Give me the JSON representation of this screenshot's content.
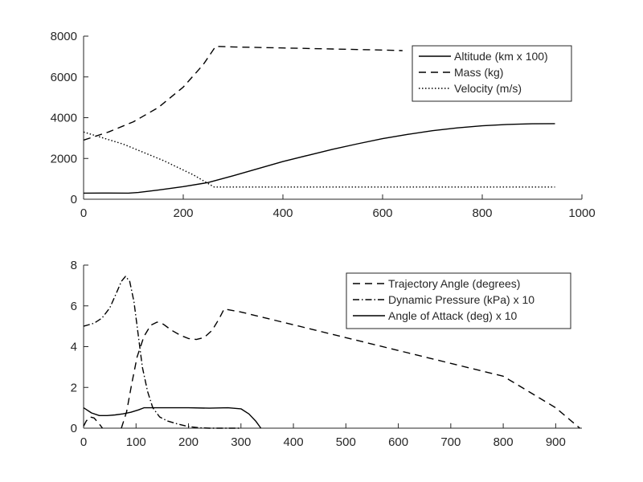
{
  "chart_data": [
    {
      "type": "line",
      "xlim": [
        0,
        1000
      ],
      "ylim": [
        0,
        8000
      ],
      "xticks": [
        0,
        200,
        400,
        600,
        800,
        1000
      ],
      "yticks": [
        0,
        2000,
        4000,
        6000,
        8000
      ],
      "grid": false,
      "legend_position": "top-right",
      "series": [
        {
          "name": "Altitude (km x 100)",
          "style": "solid",
          "points": [
            [
              0,
              300
            ],
            [
              50,
              305
            ],
            [
              90,
              300
            ],
            [
              110,
              330
            ],
            [
              150,
              450
            ],
            [
              200,
              620
            ],
            [
              250,
              820
            ],
            [
              262,
              900
            ],
            [
              300,
              1150
            ],
            [
              350,
              1500
            ],
            [
              400,
              1850
            ],
            [
              450,
              2150
            ],
            [
              500,
              2450
            ],
            [
              550,
              2720
            ],
            [
              600,
              2970
            ],
            [
              650,
              3180
            ],
            [
              700,
              3360
            ],
            [
              750,
              3500
            ],
            [
              800,
              3600
            ],
            [
              850,
              3670
            ],
            [
              900,
              3700
            ],
            [
              946,
              3710
            ]
          ]
        },
        {
          "name": "Mass (kg)",
          "style": "dashed",
          "points": [
            [
              0,
              2900
            ],
            [
              50,
              3300
            ],
            [
              100,
              3800
            ],
            [
              150,
              4500
            ],
            [
              200,
              5500
            ],
            [
              240,
              6600
            ],
            [
              265,
              7500
            ],
            [
              300,
              7470
            ],
            [
              400,
              7420
            ],
            [
              500,
              7370
            ],
            [
              600,
              7320
            ],
            [
              640,
              7290
            ]
          ]
        },
        {
          "name": "Velocity (m/s)",
          "style": "dotted",
          "points": [
            [
              0,
              3300
            ],
            [
              80,
              2700
            ],
            [
              160,
              1900
            ],
            [
              220,
              1200
            ],
            [
              262,
              600
            ],
            [
              400,
              600
            ],
            [
              600,
              600
            ],
            [
              800,
              600
            ],
            [
              946,
              600
            ]
          ]
        }
      ]
    },
    {
      "type": "line",
      "xlim": [
        0,
        950
      ],
      "ylim": [
        0,
        8
      ],
      "xticks": [
        0,
        100,
        200,
        300,
        400,
        500,
        600,
        700,
        800,
        900
      ],
      "yticks": [
        0,
        2,
        4,
        6,
        8
      ],
      "grid": false,
      "legend_position": "top-right",
      "series": [
        {
          "name": "Trajectory Angle (degrees)",
          "style": "dashed",
          "segments": [
            [
              [
                0,
                0.1
              ],
              [
                5,
                0.35
              ],
              [
                12,
                0.55
              ],
              [
                20,
                0.5
              ],
              [
                30,
                0.2
              ],
              [
                36,
                0
              ]
            ],
            [
              [
                72,
                0
              ],
              [
                82,
                0.8
              ],
              [
                92,
                2.2
              ],
              [
                102,
                3.5
              ],
              [
                115,
                4.5
              ],
              [
                128,
                5.05
              ],
              [
                140,
                5.2
              ],
              [
                152,
                5.1
              ],
              [
                168,
                4.8
              ],
              [
                185,
                4.55
              ],
              [
                200,
                4.4
              ],
              [
                215,
                4.35
              ],
              [
                230,
                4.45
              ],
              [
                245,
                4.8
              ],
              [
                258,
                5.35
              ],
              [
                268,
                5.85
              ],
              [
                300,
                5.7
              ],
              [
                400,
                5.07
              ],
              [
                500,
                4.44
              ],
              [
                600,
                3.81
              ],
              [
                700,
                3.18
              ],
              [
                800,
                2.55
              ],
              [
                900,
                1.0
              ],
              [
                946,
                0
              ]
            ]
          ]
        },
        {
          "name": "Dynamic Pressure (kPa) x 10",
          "style": "dashdot",
          "points": [
            [
              0,
              5.0
            ],
            [
              20,
              5.15
            ],
            [
              35,
              5.4
            ],
            [
              50,
              5.9
            ],
            [
              62,
              6.6
            ],
            [
              72,
              7.2
            ],
            [
              80,
              7.45
            ],
            [
              88,
              7.2
            ],
            [
              96,
              6.2
            ],
            [
              104,
              4.6
            ],
            [
              112,
              3.0
            ],
            [
              122,
              1.8
            ],
            [
              132,
              1.0
            ],
            [
              145,
              0.55
            ],
            [
              160,
              0.35
            ],
            [
              180,
              0.2
            ],
            [
              200,
              0.08
            ],
            [
              220,
              0.02
            ],
            [
              240,
              0
            ],
            [
              300,
              0
            ]
          ]
        },
        {
          "name": "Angle of Attack (deg) x 10",
          "style": "solid",
          "points": [
            [
              0,
              1.0
            ],
            [
              15,
              0.75
            ],
            [
              30,
              0.62
            ],
            [
              45,
              0.62
            ],
            [
              60,
              0.65
            ],
            [
              75,
              0.7
            ],
            [
              90,
              0.78
            ],
            [
              105,
              0.9
            ],
            [
              115,
              1.0
            ],
            [
              200,
              1.0
            ],
            [
              240,
              0.98
            ],
            [
              275,
              1.0
            ],
            [
              300,
              0.95
            ],
            [
              315,
              0.7
            ],
            [
              328,
              0.35
            ],
            [
              338,
              0
            ]
          ]
        }
      ]
    }
  ]
}
